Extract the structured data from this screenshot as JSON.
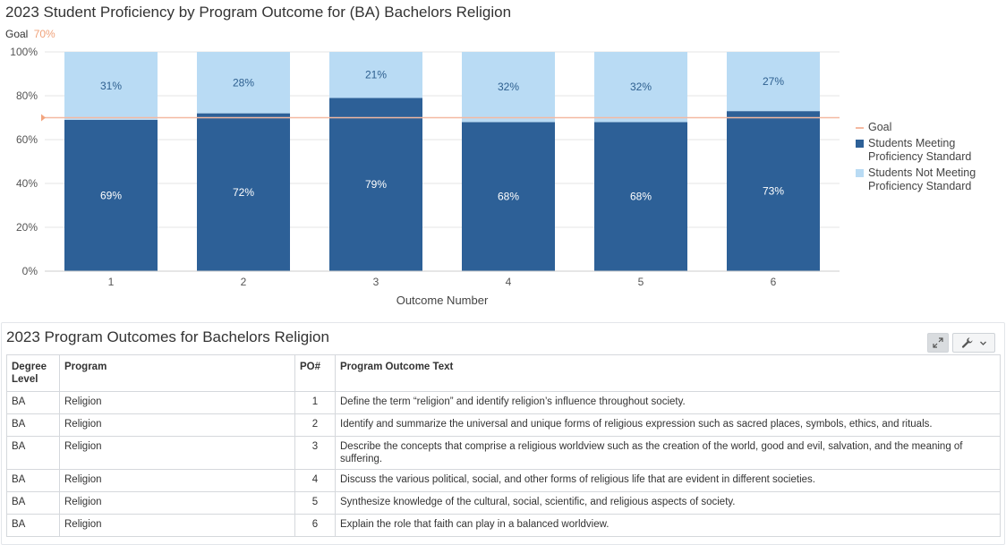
{
  "chart_data": {
    "type": "bar",
    "stacked": true,
    "title": "2023 Student Proficiency by Program Outcome for (BA) Bachelors Religion",
    "goal_label": "Goal",
    "goal_value_label": "70%",
    "goal": 70,
    "xlabel": "Outcome Number",
    "ylabel": "",
    "ylim": [
      0,
      100
    ],
    "yticks": [
      "0%",
      "20%",
      "40%",
      "60%",
      "80%",
      "100%"
    ],
    "categories": [
      "1",
      "2",
      "3",
      "4",
      "5",
      "6"
    ],
    "series": [
      {
        "name": "Students Meeting Proficiency Standard",
        "color": "#2d6097",
        "values": [
          69,
          72,
          79,
          68,
          68,
          73
        ],
        "labels": [
          "69%",
          "72%",
          "79%",
          "68%",
          "68%",
          "73%"
        ]
      },
      {
        "name": "Students Not Meeting Proficiency Standard",
        "color": "#b9dbf4",
        "values": [
          31,
          28,
          21,
          32,
          32,
          27
        ],
        "labels": [
          "31%",
          "28%",
          "21%",
          "32%",
          "32%",
          "27%"
        ]
      }
    ],
    "goal_color": "#f4b9a1",
    "grid": true,
    "legend_position": "right"
  },
  "legend": {
    "goal": "Goal",
    "meeting_line1": "Students Meeting",
    "meeting_line2": "Proficiency Standard",
    "not_meeting_line1": "Students Not Meeting",
    "not_meeting_line2": "Proficiency Standard"
  },
  "table": {
    "title": "2023 Program Outcomes for Bachelors Religion",
    "headers": {
      "degree_line1": "Degree",
      "degree_line2": "Level",
      "program": "Program",
      "po": "PO#",
      "text": "Program Outcome Text"
    },
    "rows": [
      {
        "degree": "BA",
        "program": "Religion",
        "po": "1",
        "text": "Define the term “religion” and identify religion’s influence throughout society."
      },
      {
        "degree": "BA",
        "program": "Religion",
        "po": "2",
        "text": "Identify and summarize the universal and unique forms of religious expression such as sacred places, symbols, ethics, and rituals."
      },
      {
        "degree": "BA",
        "program": "Religion",
        "po": "3",
        "text": "Describe the concepts that comprise a religious worldview such as the creation of the world, good and evil, salvation, and the meaning of suffering."
      },
      {
        "degree": "BA",
        "program": "Religion",
        "po": "4",
        "text": "Discuss the various political, social, and other forms of religious life that are evident in different societies."
      },
      {
        "degree": "BA",
        "program": "Religion",
        "po": "5",
        "text": "Synthesize knowledge of the cultural, social, scientific, and religious aspects of society."
      },
      {
        "degree": "BA",
        "program": "Religion",
        "po": "6",
        "text": "Explain the role that faith can play in a balanced worldview."
      }
    ]
  },
  "icons": {
    "expand": "expand-icon",
    "wrench": "wrench-icon",
    "chevron": "chevron-down-icon"
  }
}
